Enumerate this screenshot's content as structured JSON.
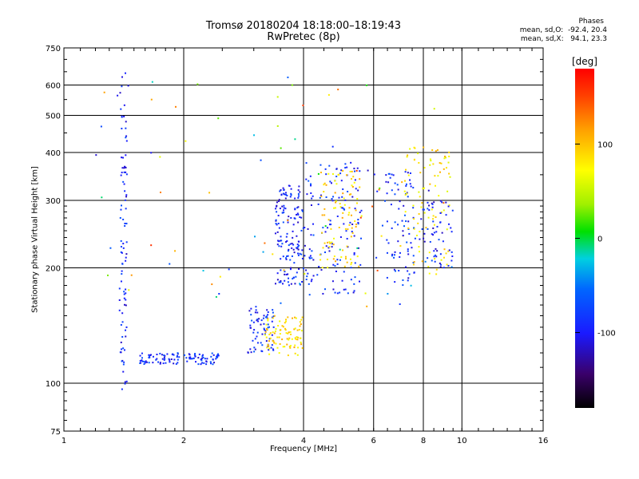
{
  "chart_data": {
    "type": "scatter",
    "title": "Tromsø 20180204 18:18:00–18:19:43",
    "subtitle": "RwPretec (8p)",
    "xlabel": "Frequency [MHz]",
    "ylabel": "Stationary phase Virtual Height [km]",
    "x_scale": "log",
    "y_scale": "log",
    "xlim": [
      1,
      16
    ],
    "ylim": [
      75,
      750
    ],
    "x_ticks": [
      "1",
      "2",
      "4",
      "6",
      "8",
      "10",
      "16"
    ],
    "y_ticks": [
      "75",
      "100",
      "200",
      "300",
      "400",
      "500",
      "600",
      "750"
    ],
    "grid": true,
    "stats_title": "Phases",
    "stats_o": "mean, sd,O:  -92.4, 20.4",
    "stats_x": "mean, sd,X:   94.1, 23.3",
    "colorbar": {
      "unit": "[deg]",
      "range": [
        -180,
        180
      ],
      "ticks": [
        "100",
        "0",
        "-100"
      ],
      "tick_values": [
        100,
        0,
        -100
      ]
    },
    "clusters": [
      {
        "name": "trace-1.4MHz",
        "x": [
          1.38,
          1.44
        ],
        "y": [
          95,
          650
        ],
        "phase": -95,
        "count": 90
      },
      {
        "name": "low-F-1.6-2.4",
        "x": [
          1.55,
          2.45
        ],
        "y": [
          112,
          120
        ],
        "phase": -90,
        "count": 110
      },
      {
        "name": "E-3.0-3.4",
        "x": [
          2.9,
          3.4
        ],
        "y": [
          120,
          160
        ],
        "phase": -90,
        "count": 70
      },
      {
        "name": "E-yellow-3.2-4",
        "x": [
          3.2,
          4.0
        ],
        "y": [
          118,
          150
        ],
        "phase": 95,
        "count": 90
      },
      {
        "name": "F-3.4-4",
        "x": [
          3.4,
          4.0
        ],
        "y": [
          180,
          330
        ],
        "phase": -95,
        "count": 150
      },
      {
        "name": "F-4-5.5",
        "x": [
          4.0,
          5.6
        ],
        "y": [
          170,
          380
        ],
        "phase": -90,
        "count": 140
      },
      {
        "name": "F-4.5-5.5-yellow",
        "x": [
          4.4,
          5.6
        ],
        "y": [
          200,
          360
        ],
        "phase": 95,
        "count": 90
      },
      {
        "name": "F-6.5-7.5",
        "x": [
          6.4,
          7.6
        ],
        "y": [
          180,
          360
        ],
        "phase": -90,
        "count": 80
      },
      {
        "name": "F-7-9-mixed",
        "x": [
          7.0,
          9.4
        ],
        "y": [
          190,
          420
        ],
        "phase": 90,
        "count": 90
      },
      {
        "name": "F-8-9.5-blue",
        "x": [
          7.8,
          9.5
        ],
        "y": [
          200,
          300
        ],
        "phase": -95,
        "count": 60
      },
      {
        "name": "sparse",
        "x": [
          1.2,
          9.5
        ],
        "y": [
          150,
          650
        ],
        "phase": 0,
        "count": 80
      }
    ]
  }
}
